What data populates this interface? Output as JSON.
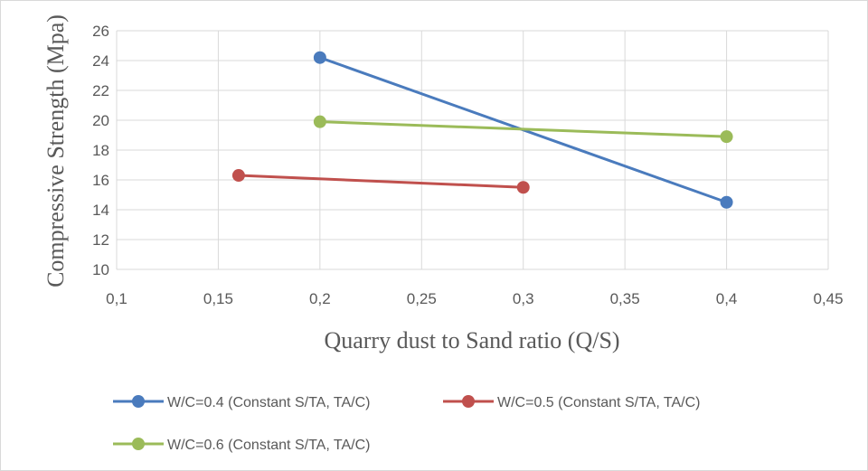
{
  "chart_data": {
    "type": "line",
    "title": "",
    "xlabel": "Quarry dust to Sand ratio (Q/S)",
    "ylabel": "Compressive Strength (Mpa)",
    "xlim": [
      0.1,
      0.45
    ],
    "ylim": [
      10,
      26
    ],
    "x_ticks": [
      "0,1",
      "0,15",
      "0,2",
      "0,25",
      "0,3",
      "0,35",
      "0,4",
      "0,45"
    ],
    "y_ticks": [
      "10",
      "12",
      "14",
      "16",
      "18",
      "20",
      "22",
      "24",
      "26"
    ],
    "grid": true,
    "legend_position": "bottom",
    "series": [
      {
        "name": "W/C=0.4 (Constant S/TA, TA/C)",
        "color": "#4a7bbd",
        "x": [
          0.2,
          0.4
        ],
        "y": [
          24.2,
          14.5
        ]
      },
      {
        "name": "W/C=0.5 (Constant S/TA, TA/C)",
        "color": "#c0504d",
        "x": [
          0.16,
          0.3
        ],
        "y": [
          16.3,
          15.5
        ]
      },
      {
        "name": "W/C=0.6 (Constant S/TA, TA/C)",
        "color": "#9bbb59",
        "x": [
          0.2,
          0.4
        ],
        "y": [
          19.9,
          18.9
        ]
      }
    ]
  }
}
